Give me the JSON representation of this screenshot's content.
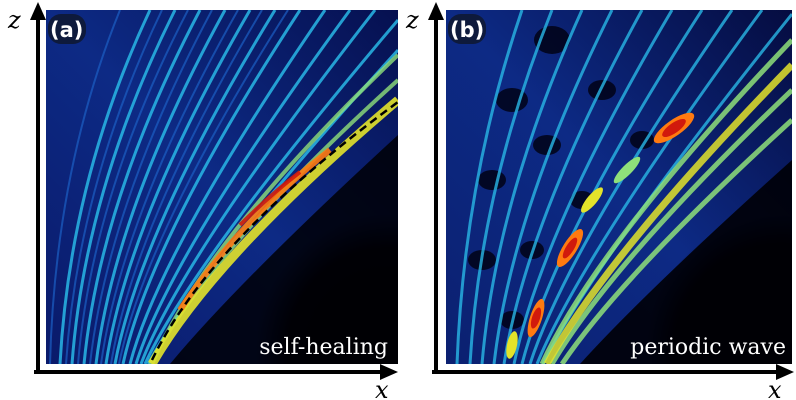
{
  "panels": [
    {
      "label": "(a)",
      "caption": "self-healing",
      "x_axis_label": "x",
      "z_axis_label": "z"
    },
    {
      "label": "(b)",
      "caption": "periodic wave",
      "x_axis_label": "x",
      "z_axis_label": "z"
    }
  ],
  "colors": {
    "background": "#000000",
    "colormap": [
      "#000010",
      "#0a1a6a",
      "#1c5fc4",
      "#29b7e6",
      "#8fe07a",
      "#e3e32a",
      "#ff7a10",
      "#d11a0c"
    ],
    "trajectory": "#000000",
    "axes": "#000000"
  }
}
